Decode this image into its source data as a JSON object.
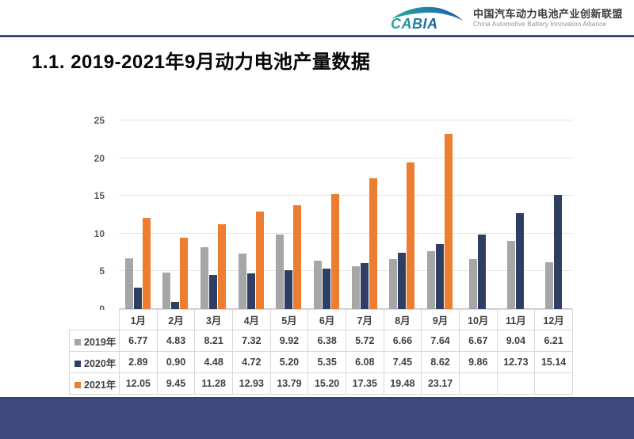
{
  "header": {
    "logo_text": "CABIA",
    "org_name_zh": "中国汽车动力电池产业创新联盟",
    "org_name_en": "China Automotive Battery Innovation Alliance"
  },
  "title": "1.1. 2019-2021年9月动力电池产量数据",
  "chart_data": {
    "type": "bar",
    "title": "",
    "categories": [
      "1月",
      "2月",
      "3月",
      "4月",
      "5月",
      "6月",
      "7月",
      "8月",
      "9月",
      "10月",
      "11月",
      "12月"
    ],
    "series": [
      {
        "name": "2019年",
        "color": "#A6A6A6",
        "values": [
          6.77,
          4.83,
          8.21,
          7.32,
          9.92,
          6.38,
          5.72,
          6.66,
          7.64,
          6.67,
          9.04,
          6.21
        ]
      },
      {
        "name": "2020年",
        "color": "#2F3E63",
        "values": [
          2.89,
          0.9,
          4.48,
          4.72,
          5.2,
          5.35,
          6.08,
          7.45,
          8.62,
          9.86,
          12.73,
          15.14
        ]
      },
      {
        "name": "2021年",
        "color": "#ED7D31",
        "values": [
          12.05,
          9.45,
          11.28,
          12.93,
          13.79,
          15.2,
          17.35,
          19.48,
          23.17,
          null,
          null,
          null
        ]
      }
    ],
    "xlabel": "",
    "ylabel": "",
    "ylim": [
      0,
      25
    ],
    "yticks": [
      0,
      5,
      10,
      15,
      20,
      25
    ],
    "grid": true,
    "legend_position": "data-table-left",
    "value_format": "0.00"
  },
  "colors": {
    "footer_bar": "#3E4A7D",
    "header_rule": "#2C3A68",
    "gridline": "#E4E4E4",
    "table_border": "#D8D8D8",
    "axis_text": "#595959"
  }
}
